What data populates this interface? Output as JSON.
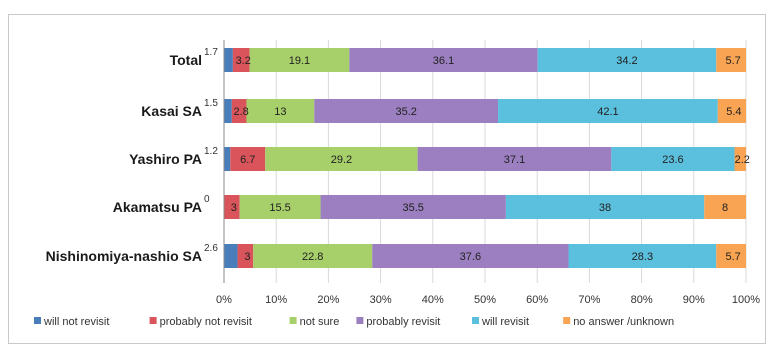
{
  "chart_data": {
    "type": "bar",
    "orientation": "horizontal",
    "stacked": "percent",
    "categories": [
      "Total",
      "Kasai SA",
      "Yashiro PA",
      "Akamatsu PA",
      "Nishinomiya-nashio SA"
    ],
    "series": [
      {
        "name": "will not revisit",
        "color": "#4a7ebb",
        "values": [
          1.7,
          1.5,
          1.2,
          0,
          2.6
        ]
      },
      {
        "name": "probably not revisit",
        "color": "#d9555b",
        "values": [
          3.2,
          2.8,
          6.7,
          3,
          3
        ]
      },
      {
        "name": "not sure",
        "color": "#a7cf6a",
        "values": [
          19.1,
          13,
          29.2,
          15.5,
          22.8
        ]
      },
      {
        "name": "probably revisit",
        "color": "#9b7fc0",
        "values": [
          36.1,
          35.2,
          37.1,
          35.5,
          37.6
        ]
      },
      {
        "name": "will revisit",
        "color": "#5bc0de",
        "values": [
          34.2,
          42.1,
          23.6,
          38,
          28.3
        ]
      },
      {
        "name": "no answer /unknown",
        "color": "#f8a452",
        "values": [
          5.7,
          5.4,
          2.2,
          8,
          5.7
        ]
      }
    ],
    "xticks": [
      "0%",
      "10%",
      "20%",
      "30%",
      "40%",
      "50%",
      "60%",
      "70%",
      "80%",
      "90%",
      "100%"
    ],
    "xlim": [
      0,
      100
    ],
    "legend": "bottom",
    "grid": true
  }
}
